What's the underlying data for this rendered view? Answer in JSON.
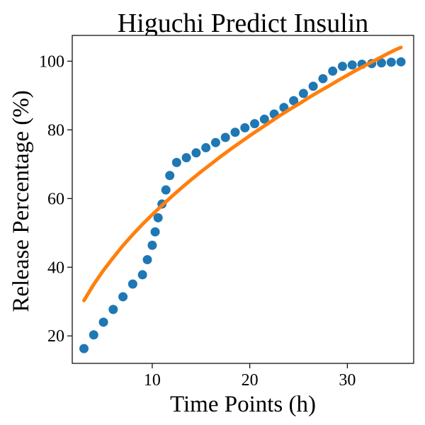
{
  "chart_data": {
    "type": "scatter",
    "title": "Higuchi Predict Insulin",
    "xlabel": "Time Points (h)",
    "ylabel": "Release Percentage (%)",
    "xlim": [
      1.8,
      36.8
    ],
    "ylim": [
      12,
      107.5
    ],
    "xticks": [
      10,
      20,
      30
    ],
    "yticks": [
      20,
      40,
      60,
      80,
      100
    ],
    "grid": false,
    "legend": "none",
    "colors": {
      "observed": "#1f77b4",
      "fit": "#ff7f0e"
    },
    "series": [
      {
        "kind": "scatter",
        "x": [
          3.0,
          4.0,
          5.0,
          6.0,
          7.0,
          8.0,
          9.0,
          9.5,
          10.0,
          10.3,
          10.6,
          11.0,
          11.4,
          11.8,
          12.5,
          13.5,
          14.5,
          15.5,
          16.5,
          17.5,
          18.5,
          19.5,
          20.5,
          21.5,
          22.5,
          23.5,
          24.5,
          25.5,
          26.5,
          27.5,
          28.5,
          29.5,
          30.5,
          31.5,
          32.5,
          33.5,
          34.5,
          35.5
        ],
        "y": [
          16.3,
          20.3,
          24.0,
          27.7,
          31.4,
          35.1,
          37.8,
          42.2,
          46.4,
          50.3,
          54.4,
          58.4,
          62.5,
          66.7,
          70.5,
          71.9,
          73.3,
          74.8,
          76.3,
          77.8,
          79.3,
          80.6,
          81.8,
          83.1,
          84.6,
          86.5,
          88.5,
          90.6,
          92.7,
          94.9,
          97.1,
          98.5,
          98.9,
          99.1,
          99.3,
          99.5,
          99.7,
          99.8
        ]
      },
      {
        "kind": "line",
        "x": [
          3.0,
          4.0,
          5.0,
          6.0,
          7.0,
          8.0,
          9.0,
          10.0,
          11.0,
          12.0,
          13.0,
          14.0,
          15.0,
          16.0,
          17.0,
          18.0,
          19.0,
          20.0,
          21.0,
          22.0,
          23.0,
          24.0,
          25.0,
          26.0,
          27.0,
          28.0,
          29.0,
          30.0,
          31.0,
          32.0,
          33.0,
          34.0,
          35.0,
          35.5
        ],
        "y": [
          30.3,
          35.0,
          39.1,
          42.8,
          46.3,
          49.5,
          52.5,
          55.3,
          58.0,
          60.6,
          63.1,
          65.5,
          67.8,
          70.0,
          72.2,
          74.3,
          76.3,
          78.3,
          80.2,
          82.1,
          84.0,
          85.8,
          87.5,
          89.3,
          91.0,
          92.6,
          94.3,
          95.9,
          97.5,
          99.0,
          100.5,
          102.0,
          103.4,
          104.0
        ]
      }
    ]
  }
}
